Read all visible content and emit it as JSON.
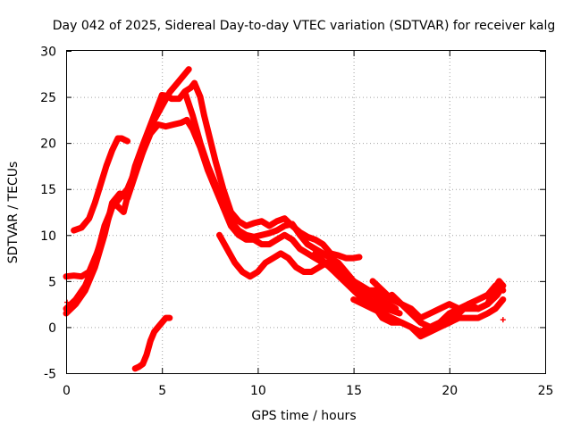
{
  "chart_data": {
    "type": "scatter",
    "title": "Day 042 of 2025, Sidereal Day-to-day VTEC variation (SDTVAR) for receiver kalg",
    "xlabel": "GPS time / hours",
    "ylabel": "SDTVAR / TECUs",
    "xlim": [
      0,
      25
    ],
    "ylim": [
      -5,
      30
    ],
    "xticks": [
      0,
      5,
      10,
      15,
      20,
      25
    ],
    "yticks": [
      -5,
      0,
      5,
      10,
      15,
      20,
      25,
      30
    ],
    "grid": true,
    "legend": "none",
    "marker": "plus",
    "color": "#ff0000",
    "series": [
      {
        "name": "track-1",
        "x": [
          0.4,
          0.8,
          1.2,
          1.5,
          1.8,
          2.1,
          2.4,
          2.7,
          2.9,
          3.2
        ],
        "y": [
          10.5,
          10.8,
          11.8,
          13.5,
          15.5,
          17.5,
          19.2,
          20.5,
          20.5,
          20.2
        ]
      },
      {
        "name": "track-2",
        "x": [
          0.0,
          0.5,
          1.0,
          1.5,
          2.0,
          2.5,
          3.0,
          3.3,
          3.6,
          4.0,
          4.5,
          5.0,
          5.3,
          5.5,
          5.9,
          6.2,
          6.5,
          6.7
        ],
        "y": [
          2.0,
          3.0,
          4.5,
          7.0,
          11.0,
          13.5,
          12.5,
          15.0,
          17.5,
          19.8,
          22.5,
          25.2,
          25.1,
          24.8,
          24.8,
          25.6,
          26.0,
          26.5
        ]
      },
      {
        "name": "track-3",
        "x": [
          0.0,
          0.4,
          0.8,
          1.2,
          1.6,
          2.0,
          2.4,
          2.8,
          3.2,
          3.6,
          4.0,
          4.3,
          4.6,
          5.0,
          5.4,
          5.8,
          6.2,
          6.4
        ],
        "y": [
          5.5,
          5.6,
          5.5,
          6.0,
          8.0,
          10.5,
          13.0,
          14.0,
          15.0,
          17.0,
          19.0,
          21.0,
          22.5,
          24.0,
          25.5,
          26.5,
          27.5,
          28.0
        ]
      },
      {
        "name": "track-4",
        "x": [
          0.0,
          0.5,
          1.0,
          1.5,
          2.0,
          2.4,
          2.8,
          3.2,
          3.6,
          4.0,
          4.4,
          4.8,
          5.2,
          5.6,
          6.0,
          6.3
        ],
        "y": [
          1.5,
          2.5,
          4.0,
          6.5,
          10.0,
          13.5,
          14.5,
          14.0,
          16.5,
          19.0,
          21.0,
          22.0,
          21.8,
          22.0,
          22.2,
          22.5
        ]
      },
      {
        "name": "track-5",
        "x": [
          6.7,
          7.0,
          7.2,
          7.5,
          7.8,
          8.2,
          8.6,
          9.0,
          9.4,
          9.8,
          10.2,
          10.6,
          11.0,
          11.4,
          11.8,
          12.2,
          12.6,
          13.0,
          13.4,
          13.8,
          14.2,
          14.6,
          15.0,
          15.3
        ],
        "y": [
          26.5,
          25.0,
          23.0,
          20.5,
          18.0,
          15.0,
          12.5,
          11.5,
          11.0,
          11.3,
          11.5,
          11.0,
          11.5,
          11.8,
          11.0,
          10.3,
          9.8,
          9.5,
          9.0,
          8.0,
          7.8,
          7.5,
          7.5,
          7.6
        ]
      },
      {
        "name": "track-6",
        "x": [
          6.3,
          6.6,
          7.0,
          7.4,
          7.8,
          8.2,
          8.6,
          9.0,
          9.4,
          9.8,
          10.2,
          10.6,
          11.0,
          11.4,
          11.8,
          12.2,
          12.6,
          13.0,
          13.4,
          13.8,
          14.2,
          14.6,
          15.0,
          15.4,
          15.8,
          16.2,
          16.6,
          17.0
        ],
        "y": [
          22.5,
          21.5,
          19.5,
          17.0,
          15.0,
          13.0,
          11.5,
          10.5,
          10.0,
          9.8,
          10.0,
          10.2,
          10.5,
          11.0,
          11.2,
          10.0,
          9.0,
          8.5,
          8.0,
          7.5,
          7.0,
          6.0,
          5.0,
          4.5,
          4.0,
          4.0,
          3.5,
          3.0
        ]
      },
      {
        "name": "track-7",
        "x": [
          6.2,
          6.6,
          7.0,
          7.4,
          7.8,
          8.2,
          8.6,
          9.0,
          9.4,
          9.8,
          10.2,
          10.6,
          11.0,
          11.4,
          11.8,
          12.2,
          12.6,
          13.0,
          13.4,
          13.8,
          14.2,
          14.6,
          15.0,
          15.4,
          15.8,
          16.2,
          16.6,
          17.0,
          17.4
        ],
        "y": [
          25.5,
          23.0,
          20.0,
          17.5,
          15.5,
          13.0,
          11.0,
          10.0,
          9.5,
          9.5,
          9.0,
          9.0,
          9.5,
          10.0,
          9.5,
          8.5,
          8.0,
          7.5,
          7.0,
          6.5,
          6.0,
          5.5,
          5.0,
          4.0,
          3.0,
          2.5,
          2.0,
          1.8,
          1.5
        ]
      },
      {
        "name": "track-8",
        "x": [
          8.0,
          8.4,
          8.8,
          9.2,
          9.6,
          10.0,
          10.4,
          10.8,
          11.2,
          11.6,
          12.0,
          12.4,
          12.8,
          13.2,
          13.6,
          14.0,
          14.4,
          14.8,
          15.2,
          15.6,
          16.0,
          16.4,
          16.8,
          17.2
        ],
        "y": [
          10.0,
          8.5,
          7.0,
          6.0,
          5.5,
          6.0,
          7.0,
          7.5,
          8.0,
          7.5,
          6.5,
          6.0,
          6.0,
          6.5,
          7.0,
          6.5,
          5.5,
          5.0,
          4.5,
          4.0,
          3.5,
          3.0,
          2.5,
          2.0
        ]
      },
      {
        "name": "track-9",
        "x": [
          13.0,
          13.5,
          14.0,
          14.5,
          15.0,
          15.5,
          16.0,
          16.5,
          17.0,
          17.5,
          18.0,
          18.5,
          19.0,
          19.5,
          20.0,
          20.5,
          21.0,
          21.5,
          22.0,
          22.5,
          22.8
        ],
        "y": [
          8.0,
          7.0,
          6.0,
          5.0,
          4.0,
          3.0,
          2.5,
          1.0,
          0.5,
          0.5,
          0.0,
          -0.5,
          0.0,
          0.5,
          1.5,
          2.0,
          2.5,
          2.0,
          2.5,
          3.5,
          4.5
        ]
      },
      {
        "name": "track-10",
        "x": [
          15.0,
          15.5,
          16.0,
          16.5,
          17.0,
          17.5,
          18.0,
          18.5,
          19.0,
          19.5,
          20.0,
          20.5,
          21.0,
          21.5,
          22.0,
          22.4,
          22.8
        ],
        "y": [
          3.0,
          2.5,
          2.0,
          1.5,
          1.0,
          0.5,
          0.0,
          -1.0,
          -0.5,
          0.0,
          0.5,
          1.0,
          1.0,
          1.0,
          1.5,
          2.0,
          3.0
        ]
      },
      {
        "name": "track-11",
        "x": [
          16.0,
          16.5,
          17.0,
          17.5,
          18.0,
          18.5,
          19.0,
          19.5,
          20.0,
          20.5,
          21.0,
          21.5,
          22.0,
          22.3,
          22.6,
          22.8
        ],
        "y": [
          5.0,
          4.0,
          3.0,
          2.5,
          2.0,
          1.0,
          1.5,
          2.0,
          2.5,
          2.0,
          2.0,
          2.0,
          2.5,
          4.0,
          5.0,
          4.5
        ]
      },
      {
        "name": "track-12",
        "x": [
          17.0,
          17.5,
          18.0,
          18.5,
          19.0,
          19.5,
          20.0,
          20.5,
          21.0,
          21.5,
          22.0,
          22.4,
          22.8
        ],
        "y": [
          3.5,
          2.5,
          1.5,
          0.5,
          0.0,
          0.5,
          1.0,
          1.5,
          2.5,
          3.0,
          3.5,
          4.5,
          4.0
        ]
      },
      {
        "name": "track-13",
        "x": [
          3.6,
          3.8,
          4.0,
          4.2,
          4.4,
          4.6,
          4.8,
          5.0,
          5.2,
          5.4
        ],
        "y": [
          -4.5,
          -4.3,
          -4.0,
          -3.0,
          -1.5,
          -0.5,
          0.0,
          0.5,
          1.0,
          1.0
        ]
      }
    ],
    "isolated_points": {
      "x": [
        0.05,
        22.8
      ],
      "y": [
        2.7,
        0.8
      ]
    }
  }
}
